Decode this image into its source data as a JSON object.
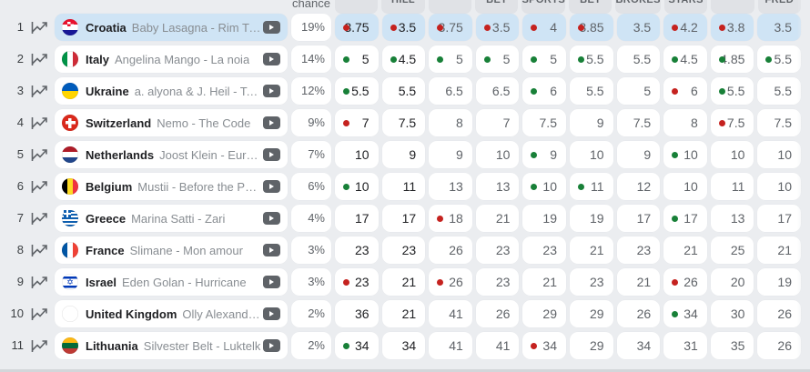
{
  "header": {
    "chance_label": "chance",
    "bookmaker_columns": [
      "",
      "HILL",
      "",
      "BET",
      "SPORTS",
      "BET",
      "BROKES",
      "STARS",
      "",
      "FRED"
    ]
  },
  "colors": {
    "highlight_blue": "#cfe4f5",
    "dot_red": "#c5221f",
    "dot_green": "#188038",
    "page_background": "#ebedf0"
  },
  "table": {
    "rows": [
      {
        "rank": "1",
        "flag": "croatia",
        "country": "Croatia",
        "entry": "Baby Lasagna - Rim Tim Tagi Dim",
        "chance": "19%",
        "highlight": true,
        "odds": [
          {
            "v": "3.75",
            "dot": "red"
          },
          {
            "v": "3.5",
            "dot": "red"
          },
          {
            "v": "3.75",
            "dot": "red"
          },
          {
            "v": "3.5",
            "dot": "red"
          },
          {
            "v": "4",
            "dot": "red"
          },
          {
            "v": "3.85",
            "dot": "red"
          },
          {
            "v": "3.5",
            "dot": null
          },
          {
            "v": "4.2",
            "dot": "red"
          },
          {
            "v": "3.8",
            "dot": "red"
          },
          {
            "v": "3.5",
            "dot": null
          }
        ]
      },
      {
        "rank": "2",
        "flag": "italy",
        "country": "Italy",
        "entry": "Angelina Mango - La noia",
        "chance": "14%",
        "highlight": false,
        "odds": [
          {
            "v": "5",
            "dot": "green"
          },
          {
            "v": "4.5",
            "dot": "green"
          },
          {
            "v": "5",
            "dot": "green"
          },
          {
            "v": "5",
            "dot": "green"
          },
          {
            "v": "5",
            "dot": "green"
          },
          {
            "v": "5.5",
            "dot": "green"
          },
          {
            "v": "5.5",
            "dot": null
          },
          {
            "v": "4.5",
            "dot": "green"
          },
          {
            "v": "4.85",
            "dot": "green"
          },
          {
            "v": "5.5",
            "dot": "green"
          }
        ]
      },
      {
        "rank": "3",
        "flag": "ukraine",
        "country": "Ukraine",
        "entry": "a. alyona & J. Heil - Teresa & Maria",
        "chance": "12%",
        "highlight": false,
        "odds": [
          {
            "v": "5.5",
            "dot": "green"
          },
          {
            "v": "5.5",
            "dot": null
          },
          {
            "v": "6.5",
            "dot": null
          },
          {
            "v": "6.5",
            "dot": null
          },
          {
            "v": "6",
            "dot": "green"
          },
          {
            "v": "5.5",
            "dot": null
          },
          {
            "v": "5",
            "dot": null
          },
          {
            "v": "6",
            "dot": "red"
          },
          {
            "v": "5.5",
            "dot": "green"
          },
          {
            "v": "5.5",
            "dot": null
          }
        ]
      },
      {
        "rank": "4",
        "flag": "switzerland",
        "country": "Switzerland",
        "entry": "Nemo - The Code",
        "chance": "9%",
        "highlight": false,
        "odds": [
          {
            "v": "7",
            "dot": "red"
          },
          {
            "v": "7.5",
            "dot": null
          },
          {
            "v": "8",
            "dot": null
          },
          {
            "v": "7",
            "dot": null
          },
          {
            "v": "7.5",
            "dot": null
          },
          {
            "v": "9",
            "dot": null
          },
          {
            "v": "7.5",
            "dot": null
          },
          {
            "v": "8",
            "dot": null
          },
          {
            "v": "7.5",
            "dot": "red"
          },
          {
            "v": "7.5",
            "dot": null
          }
        ]
      },
      {
        "rank": "5",
        "flag": "netherlands",
        "country": "Netherlands",
        "entry": "Joost Klein - Europapa",
        "chance": "7%",
        "highlight": false,
        "odds": [
          {
            "v": "10",
            "dot": null
          },
          {
            "v": "9",
            "dot": null
          },
          {
            "v": "9",
            "dot": null
          },
          {
            "v": "10",
            "dot": null
          },
          {
            "v": "9",
            "dot": "green"
          },
          {
            "v": "10",
            "dot": null
          },
          {
            "v": "9",
            "dot": null
          },
          {
            "v": "10",
            "dot": "green"
          },
          {
            "v": "10",
            "dot": null
          },
          {
            "v": "10",
            "dot": null
          }
        ]
      },
      {
        "rank": "6",
        "flag": "belgium",
        "country": "Belgium",
        "entry": "Mustii - Before the Party's Over",
        "chance": "6%",
        "highlight": false,
        "odds": [
          {
            "v": "10",
            "dot": "green"
          },
          {
            "v": "11",
            "dot": null
          },
          {
            "v": "13",
            "dot": null
          },
          {
            "v": "13",
            "dot": null
          },
          {
            "v": "10",
            "dot": "green"
          },
          {
            "v": "11",
            "dot": "green"
          },
          {
            "v": "12",
            "dot": null
          },
          {
            "v": "10",
            "dot": null
          },
          {
            "v": "11",
            "dot": null
          },
          {
            "v": "10",
            "dot": null
          }
        ]
      },
      {
        "rank": "7",
        "flag": "greece",
        "country": "Greece",
        "entry": "Marina Satti - Zari",
        "chance": "4%",
        "highlight": false,
        "odds": [
          {
            "v": "17",
            "dot": null
          },
          {
            "v": "17",
            "dot": null
          },
          {
            "v": "18",
            "dot": "red"
          },
          {
            "v": "21",
            "dot": null
          },
          {
            "v": "19",
            "dot": null
          },
          {
            "v": "19",
            "dot": null
          },
          {
            "v": "17",
            "dot": null
          },
          {
            "v": "17",
            "dot": "green"
          },
          {
            "v": "13",
            "dot": null
          },
          {
            "v": "17",
            "dot": null
          }
        ]
      },
      {
        "rank": "8",
        "flag": "france",
        "country": "France",
        "entry": "Slimane - Mon amour",
        "chance": "3%",
        "highlight": false,
        "odds": [
          {
            "v": "23",
            "dot": null
          },
          {
            "v": "23",
            "dot": null
          },
          {
            "v": "26",
            "dot": null
          },
          {
            "v": "23",
            "dot": null
          },
          {
            "v": "23",
            "dot": null
          },
          {
            "v": "21",
            "dot": null
          },
          {
            "v": "23",
            "dot": null
          },
          {
            "v": "21",
            "dot": null
          },
          {
            "v": "25",
            "dot": null
          },
          {
            "v": "21",
            "dot": null
          }
        ]
      },
      {
        "rank": "9",
        "flag": "israel",
        "country": "Israel",
        "entry": "Eden Golan - Hurricane",
        "chance": "3%",
        "highlight": false,
        "odds": [
          {
            "v": "23",
            "dot": "red"
          },
          {
            "v": "21",
            "dot": null
          },
          {
            "v": "26",
            "dot": "red"
          },
          {
            "v": "23",
            "dot": null
          },
          {
            "v": "21",
            "dot": null
          },
          {
            "v": "23",
            "dot": null
          },
          {
            "v": "21",
            "dot": null
          },
          {
            "v": "26",
            "dot": "red"
          },
          {
            "v": "20",
            "dot": null
          },
          {
            "v": "19",
            "dot": null
          }
        ]
      },
      {
        "rank": "10",
        "flag": "united-kingdom",
        "country": "United Kingdom",
        "entry": "Olly Alexander - Dizzy",
        "chance": "2%",
        "highlight": false,
        "odds": [
          {
            "v": "36",
            "dot": null
          },
          {
            "v": "21",
            "dot": null
          },
          {
            "v": "41",
            "dot": null
          },
          {
            "v": "26",
            "dot": null
          },
          {
            "v": "29",
            "dot": null
          },
          {
            "v": "29",
            "dot": null
          },
          {
            "v": "26",
            "dot": null
          },
          {
            "v": "34",
            "dot": "green"
          },
          {
            "v": "30",
            "dot": null
          },
          {
            "v": "26",
            "dot": null
          }
        ]
      },
      {
        "rank": "11",
        "flag": "lithuania",
        "country": "Lithuania",
        "entry": "Silvester Belt - Luktelk",
        "chance": "2%",
        "highlight": false,
        "odds": [
          {
            "v": "34",
            "dot": "green"
          },
          {
            "v": "34",
            "dot": null
          },
          {
            "v": "41",
            "dot": null
          },
          {
            "v": "41",
            "dot": null
          },
          {
            "v": "34",
            "dot": "red"
          },
          {
            "v": "29",
            "dot": null
          },
          {
            "v": "34",
            "dot": null
          },
          {
            "v": "31",
            "dot": null
          },
          {
            "v": "35",
            "dot": null
          },
          {
            "v": "26",
            "dot": null
          }
        ]
      }
    ]
  }
}
